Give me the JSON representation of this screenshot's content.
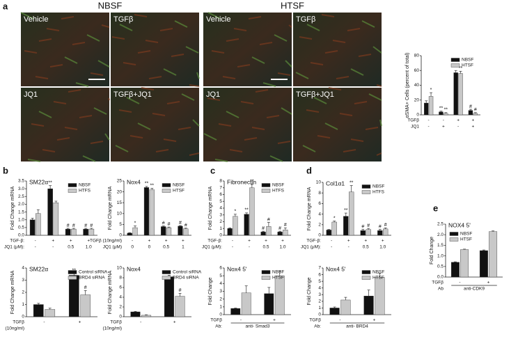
{
  "panels": [
    "a",
    "b",
    "c",
    "d",
    "e"
  ],
  "images": [
    {
      "title": "NBSF",
      "labels": [
        "Vehicle",
        "TGFβ",
        "JQ1",
        "TGFβ+JQ1"
      ]
    },
    {
      "title": "HTSF",
      "labels": [
        "Vehicle",
        "TGFβ",
        "JQ1",
        "TGFβ+JQ1"
      ]
    }
  ],
  "chart_data": [
    {
      "type": "bar",
      "ylabel": "αSMA+ Cells (percent of total)",
      "ylim": [
        0,
        80
      ],
      "yticks": [
        0,
        20,
        40,
        60,
        80
      ],
      "legend": "top-right",
      "conditions": [
        {
          "label": "TGFβ",
          "values": [
            "-",
            "-",
            "+",
            "+"
          ]
        },
        {
          "label": "JQ1",
          "values": [
            "-",
            "+",
            "-",
            "+"
          ]
        }
      ],
      "series": [
        {
          "name": "NBSF",
          "color": "#111111",
          "values": [
            16,
            4,
            57,
            6
          ],
          "errors": [
            3,
            1,
            3,
            1.5
          ],
          "marks": [
            null,
            "**",
            "**",
            "#"
          ]
        },
        {
          "name": "HTSF",
          "color": "#c8c8c8",
          "values": [
            25,
            2,
            56,
            2
          ],
          "errors": [
            5,
            1,
            3,
            1
          ],
          "marks": [
            "*",
            "**",
            "**",
            "#"
          ]
        }
      ]
    },
    {
      "type": "bar",
      "title": "SM22α",
      "ylabel": "Fold Change mRNA",
      "ylim": [
        0,
        3.5
      ],
      "legend": "top-right",
      "yticks": [
        {
          "value": 0,
          "label": "0.0"
        },
        0.5,
        {
          "value": 1,
          "label": "1.0"
        },
        1.5,
        {
          "value": 2,
          "label": "2.0"
        },
        2.5,
        {
          "value": 3,
          "label": "3.0"
        },
        3.5
      ],
      "conditions": [
        {
          "label": "TGF-β:",
          "values": [
            "-",
            "+",
            "+",
            "+"
          ]
        },
        {
          "label": "JQ1 (μM):",
          "values": [
            "-",
            "-",
            "0.5",
            "1.0"
          ]
        }
      ],
      "series": [
        {
          "name": "NBSF",
          "color": "#111111",
          "values": [
            1.0,
            3.0,
            0.4,
            0.4
          ],
          "errors": [
            0.1,
            0.2,
            0.05,
            0.05
          ],
          "marks": [
            null,
            "**",
            "#",
            "#"
          ]
        },
        {
          "name": "HTFS",
          "color": "#c8c8c8",
          "values": [
            1.4,
            2.1,
            0.4,
            0.4
          ],
          "errors": [
            0.25,
            0.1,
            0.05,
            0.05
          ],
          "marks": [
            null,
            null,
            "#",
            "#"
          ]
        }
      ]
    },
    {
      "type": "bar",
      "title": "Nox4",
      "ylabel": "Fold Change mRNA",
      "ylim": [
        0,
        25
      ],
      "yticks": [
        0,
        5,
        10,
        15,
        20,
        25
      ],
      "legend": "top-right",
      "conditions": [
        {
          "label": "TGFβ (10ng/ml)",
          "values": [
            "-",
            "+",
            "+",
            "+"
          ]
        },
        {
          "label": "JQ1 (μM)",
          "values": [
            "0",
            "0",
            "0.5",
            "1"
          ]
        }
      ],
      "series": [
        {
          "name": "NBSF",
          "color": "#111111",
          "values": [
            1,
            22,
            4,
            4.2
          ],
          "errors": [
            0.2,
            0.5,
            0.3,
            0.3
          ],
          "marks": [
            null,
            "**",
            "#",
            "#"
          ]
        },
        {
          "name": "HTSF",
          "color": "#c8c8c8",
          "values": [
            3.5,
            21,
            3.5,
            3
          ],
          "errors": [
            0.8,
            0.6,
            0.3,
            0.3
          ],
          "marks": [
            "*",
            "**",
            "#",
            "#"
          ]
        }
      ]
    },
    {
      "type": "bar",
      "title": "Fibronectin",
      "ylabel": "Fold Change mRNA",
      "ylim": [
        0,
        8
      ],
      "yticks": [
        0,
        1,
        2,
        3,
        4,
        5,
        6,
        7,
        8
      ],
      "legend": "top-right",
      "conditions": [
        {
          "label": "TGF-β:",
          "values": [
            "-",
            "+",
            "+",
            "+"
          ]
        },
        {
          "label": "JQ1 (μM):",
          "values": [
            "-",
            "-",
            "0.5",
            "1.0"
          ]
        }
      ],
      "series": [
        {
          "name": "NBSF",
          "color": "#111111",
          "values": [
            1,
            3.1,
            0.5,
            0.5
          ],
          "errors": [
            0.1,
            0.2,
            0.1,
            0.1
          ],
          "marks": [
            null,
            "**",
            "#",
            "#"
          ]
        },
        {
          "name": "HTFS",
          "color": "#c8c8c8",
          "values": [
            2.8,
            7,
            1.3,
            0.8
          ],
          "errors": [
            0.3,
            0.5,
            0.6,
            0.3
          ],
          "marks": [
            "*",
            "**",
            "#",
            "#"
          ]
        }
      ]
    },
    {
      "type": "bar",
      "title": "Col1α1",
      "ylabel": "Fold Change mRNA",
      "ylim": [
        0,
        10
      ],
      "yticks": [
        0,
        2,
        4,
        6,
        8,
        10
      ],
      "legend": "top-right",
      "conditions": [
        {
          "label": "TGF-β:",
          "values": [
            "-",
            "+",
            "+",
            "+"
          ]
        },
        {
          "label": "JQ1 (μM):",
          "values": [
            "-",
            "-",
            "0.5",
            "1.0"
          ]
        }
      ],
      "series": [
        {
          "name": "NBSF",
          "color": "#111111",
          "values": [
            1,
            3.6,
            0.9,
            0.9
          ],
          "errors": [
            0.1,
            0.6,
            0.2,
            0.2
          ],
          "marks": [
            null,
            "**",
            "#",
            "#"
          ]
        },
        {
          "name": "HTFS",
          "color": "#c8c8c8",
          "values": [
            2.5,
            8.2,
            1.1,
            1.2
          ],
          "errors": [
            0.2,
            1.2,
            0.2,
            0.2
          ],
          "marks": [
            "*",
            "**",
            "#",
            "#"
          ]
        }
      ]
    },
    {
      "type": "bar",
      "title": "SM22α",
      "ylabel": "Fold Change mRNA",
      "ylim": [
        0,
        4
      ],
      "yticks": [
        0,
        1,
        2,
        3,
        4
      ],
      "legend": "top-right",
      "conditions": [
        {
          "label": "TGFβ",
          "values": [
            "-",
            "+"
          ]
        },
        {
          "label": "(10ng/ml)",
          "values": [
            null,
            null
          ]
        }
      ],
      "series": [
        {
          "name": "Control siRNA",
          "color": "#111111",
          "values": [
            1,
            3.4
          ],
          "errors": [
            0.1,
            0.15
          ],
          "marks": [
            null,
            "**"
          ]
        },
        {
          "name": "BRD4 siRNA",
          "color": "#c8c8c8",
          "values": [
            0.6,
            1.8
          ],
          "errors": [
            0.1,
            0.35
          ],
          "marks": [
            null,
            "#"
          ]
        }
      ]
    },
    {
      "type": "bar",
      "title": "Nox4",
      "ylabel": "Fold Change mRNA",
      "ylim": [
        0,
        10
      ],
      "yticks": [
        0,
        2,
        4,
        6,
        8,
        10
      ],
      "legend": "top-right",
      "conditions": [
        {
          "label": "TGFβ",
          "values": [
            "-",
            "+"
          ]
        },
        {
          "label": "(10ng/ml)",
          "values": [
            null,
            null
          ]
        }
      ],
      "series": [
        {
          "name": "Control siRNA",
          "color": "#111111",
          "values": [
            1,
            8.2
          ],
          "errors": [
            0.1,
            0.3
          ],
          "marks": [
            null,
            "**"
          ]
        },
        {
          "name": "BRD4 siRNA",
          "color": "#c8c8c8",
          "values": [
            0.3,
            4.2
          ],
          "errors": [
            0.1,
            0.6
          ],
          "marks": [
            null,
            "#"
          ]
        }
      ]
    },
    {
      "type": "bar",
      "title": "Nox4 5'",
      "ylabel": "Fold Change",
      "ylim": [
        0,
        6
      ],
      "yticks": [
        0,
        1,
        2,
        3,
        4,
        5,
        6
      ],
      "legend": "top-right",
      "conditions": [
        {
          "label": "TGFβ",
          "values": [
            "-",
            "+"
          ]
        },
        {
          "label": "Ab:",
          "values": [
            "anti- Smad3"
          ]
        }
      ],
      "series": [
        {
          "name": "NBSF",
          "color": "#111111",
          "values": [
            0.8,
            2.7
          ],
          "errors": [
            0.05,
            0.8
          ],
          "marks": [
            null,
            null
          ]
        },
        {
          "name": "HTSF",
          "color": "#c8c8c8",
          "values": [
            2.8,
            5
          ],
          "errors": [
            0.9,
            0.6
          ],
          "marks": [
            null,
            null
          ]
        }
      ]
    },
    {
      "type": "bar",
      "title": "Nox4 5'",
      "ylabel": "Fold Change",
      "ylim": [
        0,
        7
      ],
      "yticks": [
        0,
        1,
        2,
        3,
        4,
        5,
        6,
        7
      ],
      "legend": "top-right",
      "conditions": [
        {
          "label": "TGFβ",
          "values": [
            "-",
            "+"
          ]
        },
        {
          "label": "Ab:",
          "values": [
            "anti- BRD4"
          ]
        }
      ],
      "series": [
        {
          "name": "NBSF",
          "color": "#111111",
          "values": [
            1,
            2.8
          ],
          "errors": [
            0.15,
            0.9
          ],
          "marks": [
            null,
            null
          ]
        },
        {
          "name": "HTSF",
          "color": "#c8c8c8",
          "values": [
            2.2,
            5.6
          ],
          "errors": [
            0.4,
            0.6
          ],
          "marks": [
            null,
            null
          ]
        }
      ]
    },
    {
      "type": "bar",
      "title": "NOX4 5'",
      "ylabel": "Fold Change",
      "ylim": [
        0,
        2.5
      ],
      "legend": "top-left",
      "yticks": [
        {
          "value": 0,
          "label": "0.0"
        },
        0.5,
        {
          "value": 1,
          "label": "1.0"
        },
        1.5,
        {
          "value": 2,
          "label": "2.0"
        },
        2.5
      ],
      "conditions": [
        {
          "label": "TGFβ",
          "values": [
            "-",
            "+"
          ]
        },
        {
          "label": "Ab",
          "values": [
            "anti-CDK9"
          ]
        }
      ],
      "series": [
        {
          "name": "NBSF",
          "color": "#111111",
          "values": [
            0.7,
            1.25
          ],
          "errors": [
            0.02,
            0.03
          ],
          "marks": [
            null,
            null
          ]
        },
        {
          "name": "HTSF",
          "color": "#c8c8c8",
          "values": [
            1.3,
            2.15
          ],
          "errors": [
            0.02,
            0.03
          ],
          "marks": [
            null,
            null
          ]
        }
      ]
    }
  ]
}
